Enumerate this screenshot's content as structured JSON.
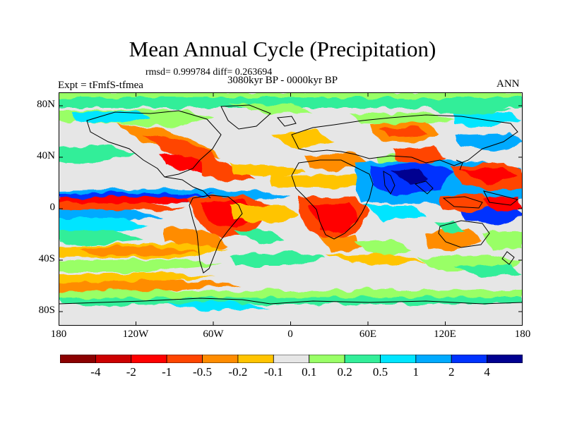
{
  "title": "Mean Annual Cycle (Precipitation)",
  "stats": "rmsd= 0.999784  diff= 0.263694",
  "period": "3080kyr BP - 0000kyr BP",
  "experiment": "Expt = tFmfS-tfmea",
  "season": "ANN",
  "lat_ticks": [
    "80N",
    "40N",
    "0",
    "40S",
    "80S"
  ],
  "lon_ticks": [
    "180",
    "120W",
    "60W",
    "0",
    "60E",
    "120E",
    "180"
  ],
  "colorbar": {
    "labels": [
      "-4",
      "-2",
      "-1",
      "-0.5",
      "-0.2",
      "-0.1",
      "0.1",
      "0.2",
      "0.5",
      "1",
      "2",
      "4"
    ],
    "colors": [
      "#8b0000",
      "#cc0000",
      "#ff0000",
      "#ff4500",
      "#ff8c00",
      "#ffc400",
      "#e6e6e6",
      "#99ff66",
      "#33ee99",
      "#00e5ff",
      "#00aaff",
      "#0033ff",
      "#000090"
    ]
  }
}
